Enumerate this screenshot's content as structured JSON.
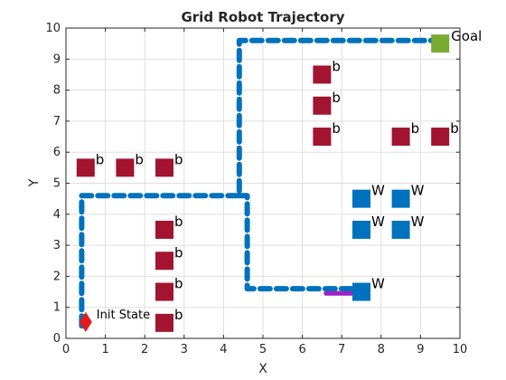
{
  "chart_data": {
    "type": "scatter",
    "title": "Grid Robot Trajectory",
    "xlabel": "X",
    "ylabel": "Y",
    "xlim": [
      0,
      10
    ],
    "ylim": [
      0,
      10
    ],
    "xticks": [
      "0",
      "1",
      "2",
      "3",
      "4",
      "5",
      "6",
      "7",
      "8",
      "9",
      "10"
    ],
    "yticks": [
      "0",
      "1",
      "2",
      "3",
      "4",
      "5",
      "6",
      "7",
      "8",
      "9",
      "10"
    ],
    "grid": true,
    "colors": {
      "trajectory": "#0072bd",
      "b_block": "#a2142f",
      "w_block": "#0072bd",
      "goal": "#77ac30",
      "start": "#e41a1c",
      "final_step": "#a020c8"
    },
    "trajectory": [
      [
        0.4,
        0.4
      ],
      [
        0.4,
        4.6
      ],
      [
        4.4,
        4.6
      ],
      [
        4.4,
        9.6
      ],
      [
        9.4,
        9.6
      ]
    ],
    "trajectory_offshoot": [
      [
        4.4,
        4.6
      ],
      [
        4.6,
        4.6
      ],
      [
        4.6,
        1.6
      ],
      [
        7.4,
        1.6
      ]
    ],
    "final_step": [
      [
        6.6,
        1.45
      ],
      [
        7.5,
        1.45
      ]
    ],
    "b_blocks": [
      {
        "x": 0.5,
        "y": 5.5,
        "label": "b"
      },
      {
        "x": 1.5,
        "y": 5.5,
        "label": "b"
      },
      {
        "x": 2.5,
        "y": 5.5,
        "label": "b"
      },
      {
        "x": 2.5,
        "y": 3.5,
        "label": "b"
      },
      {
        "x": 2.5,
        "y": 2.5,
        "label": "b"
      },
      {
        "x": 2.5,
        "y": 1.5,
        "label": "b"
      },
      {
        "x": 2.5,
        "y": 0.5,
        "label": "b"
      },
      {
        "x": 6.5,
        "y": 8.5,
        "label": "b"
      },
      {
        "x": 6.5,
        "y": 7.5,
        "label": "b"
      },
      {
        "x": 6.5,
        "y": 6.5,
        "label": "b"
      },
      {
        "x": 8.5,
        "y": 6.5,
        "label": "b"
      },
      {
        "x": 9.5,
        "y": 6.5,
        "label": "b"
      }
    ],
    "w_blocks": [
      {
        "x": 7.5,
        "y": 4.5,
        "label": "W"
      },
      {
        "x": 8.5,
        "y": 4.5,
        "label": "W"
      },
      {
        "x": 7.5,
        "y": 3.5,
        "label": "W"
      },
      {
        "x": 8.5,
        "y": 3.5,
        "label": "W"
      },
      {
        "x": 7.5,
        "y": 1.5,
        "label": "W"
      }
    ],
    "goal": {
      "x": 9.5,
      "y": 9.5,
      "label": "Goal"
    },
    "start": {
      "x": 0.5,
      "y": 0.5,
      "label": "Init State"
    }
  }
}
